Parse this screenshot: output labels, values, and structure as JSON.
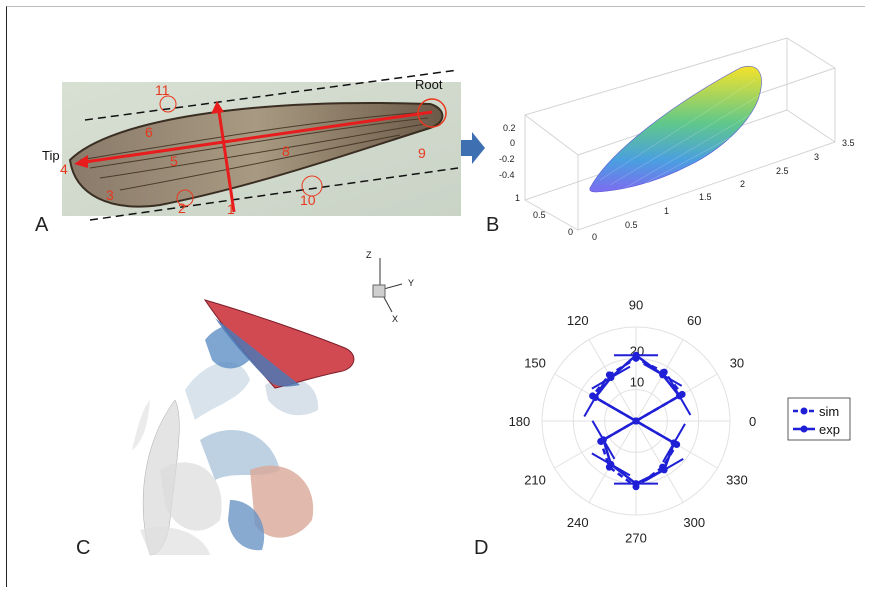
{
  "panels": {
    "a": {
      "letter": "A",
      "tip_label": "Tip",
      "root_label": "Root",
      "numbers": [
        "1",
        "2",
        "3",
        "4",
        "5",
        "6",
        "8",
        "9",
        "10",
        "11"
      ]
    },
    "b": {
      "letter": "B",
      "z_ticks": [
        "0.2",
        "0",
        "-0.2",
        "-0.4"
      ],
      "x_ticks": [
        "0",
        "0.5",
        "1",
        "1.5",
        "2",
        "2.5",
        "3",
        "3.5"
      ],
      "y_ticks": [
        "1",
        "0.5",
        "0"
      ]
    },
    "c": {
      "letter": "C",
      "axes": {
        "z": "Z",
        "y": "Y",
        "x": "X"
      }
    },
    "d": {
      "letter": "D"
    }
  },
  "chart_data": {
    "type": "polar",
    "angle_ticks": [
      "0",
      "30",
      "60",
      "90",
      "120",
      "150",
      "180",
      "210",
      "240",
      "270",
      "300",
      "330"
    ],
    "radial_ticks": [
      "10",
      "20"
    ],
    "rlim": [
      0,
      30
    ],
    "legend_position": "right",
    "series": [
      {
        "name": "sim",
        "style": "dashed",
        "color": "#1f1fd6",
        "theta": [
          0,
          30,
          60,
          90,
          120,
          150,
          180,
          210,
          240,
          270,
          300,
          330,
          0
        ],
        "r": [
          0,
          17,
          18,
          20,
          17,
          16,
          0,
          13,
          17,
          21,
          17,
          15,
          0
        ]
      },
      {
        "name": "exp",
        "style": "solid",
        "color": "#1f1fd6",
        "theta": [
          0,
          30,
          60,
          90,
          120,
          150,
          180,
          210,
          240,
          270,
          300,
          330,
          0
        ],
        "r": [
          0,
          16,
          17,
          21,
          16,
          15,
          0,
          12,
          16,
          20,
          18,
          14,
          0
        ]
      }
    ]
  }
}
